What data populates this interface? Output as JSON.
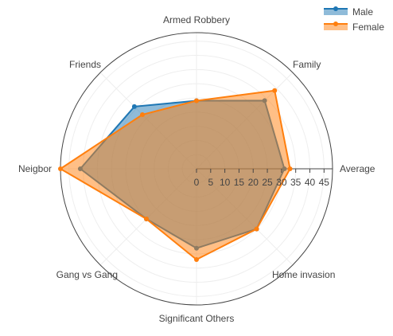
{
  "chart_data": {
    "type": "radar",
    "categories": [
      "Average",
      "Family",
      "Armed Robbery",
      "Friends",
      "Neigbor",
      "Gang vs Gang",
      "Significant Others",
      "Home invasion"
    ],
    "series": [
      {
        "name": "Male",
        "values": [
          31,
          34,
          24,
          31,
          41,
          25,
          28,
          30
        ],
        "color": "#1f77b4"
      },
      {
        "name": "Female",
        "values": [
          33,
          39,
          24,
          27,
          48,
          25,
          32,
          30
        ],
        "color": "#ff7f0e"
      }
    ],
    "radial_ticks": [
      "0",
      "5",
      "10",
      "15",
      "20",
      "25",
      "30",
      "35",
      "40",
      "45"
    ],
    "radial_range": [
      0,
      48
    ],
    "legend_position": "top-right",
    "grid": true
  }
}
